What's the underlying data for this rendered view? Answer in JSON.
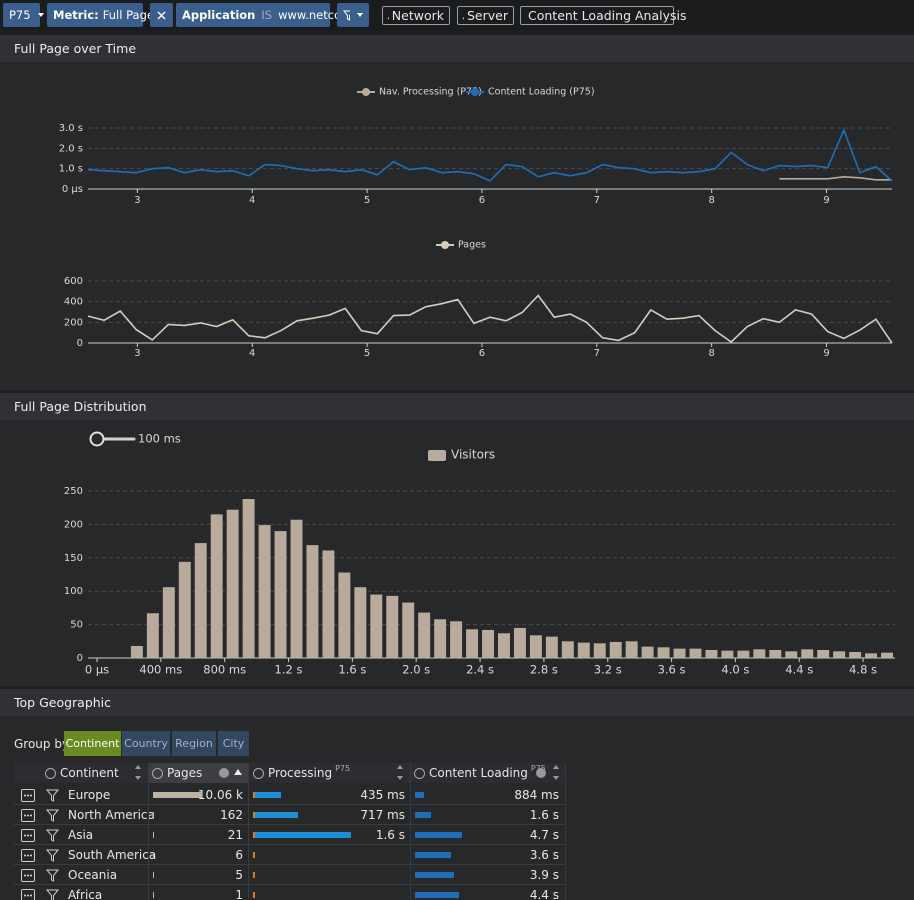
{
  "toolbar": {
    "percentile": "P75",
    "metric_key": "Metric:",
    "metric": "Full Page",
    "filter_key": "Application",
    "filter_op": "IS",
    "filter_value": "www.netcor.de",
    "links": [
      "Network",
      "Server",
      "Content Loading Analysis"
    ]
  },
  "panels": {
    "over_time": "Full Page over Time",
    "distribution": "Full Page Distribution",
    "geographic": "Top Geographic"
  },
  "slider_label": "100 ms",
  "chart_data": [
    {
      "type": "line",
      "x": [
        2.57,
        2.71,
        2.85,
        2.99,
        3.13,
        3.27,
        3.41,
        3.55,
        3.69,
        3.83,
        3.97,
        4.11,
        4.25,
        4.39,
        4.53,
        4.67,
        4.81,
        4.95,
        5.09,
        5.23,
        5.37,
        5.51,
        5.65,
        5.79,
        5.93,
        6.07,
        6.21,
        6.35,
        6.49,
        6.63,
        6.77,
        6.91,
        7.05,
        7.19,
        7.33,
        7.47,
        7.61,
        7.75,
        7.89,
        8.03,
        8.17,
        8.31,
        8.45,
        8.59,
        8.73,
        8.87,
        9.01,
        9.15,
        9.29,
        9.43,
        9.57
      ],
      "series": [
        {
          "name": "Nav. Processing (P75)",
          "color": "#b8ab9b",
          "values": [
            null,
            null,
            null,
            null,
            null,
            null,
            null,
            null,
            null,
            null,
            null,
            null,
            null,
            null,
            null,
            null,
            null,
            null,
            null,
            null,
            null,
            null,
            null,
            null,
            null,
            null,
            null,
            null,
            null,
            null,
            null,
            null,
            null,
            null,
            null,
            null,
            null,
            null,
            null,
            null,
            null,
            null,
            null,
            0.5,
            0.5,
            0.5,
            0.5,
            0.6,
            0.55,
            0.45,
            0.45
          ]
        },
        {
          "name": "Content Loading (P75)",
          "color": "#1f6fb8",
          "values": [
            0.95,
            0.9,
            0.85,
            0.8,
            1.0,
            1.05,
            0.8,
            0.95,
            0.85,
            0.9,
            0.65,
            1.2,
            1.15,
            1.0,
            0.9,
            0.95,
            0.85,
            0.95,
            0.7,
            1.35,
            0.95,
            1.05,
            0.8,
            0.85,
            0.75,
            0.4,
            1.2,
            1.1,
            0.6,
            0.8,
            0.65,
            0.8,
            1.2,
            1.05,
            1.0,
            0.8,
            0.85,
            0.8,
            0.85,
            1.0,
            1.8,
            1.2,
            0.9,
            1.15,
            1.1,
            1.15,
            1.05,
            2.9,
            0.8,
            1.1,
            0.4
          ]
        }
      ],
      "xlim": [
        2.57,
        9.57
      ],
      "xticks": [
        3,
        4,
        5,
        6,
        7,
        8,
        9
      ],
      "ylim": [
        0,
        3
      ],
      "yticks": [
        {
          "value": 0,
          "label": "0 µs"
        },
        {
          "value": 1,
          "label": "1.0 s"
        },
        {
          "value": 2,
          "label": "2.0 s"
        },
        {
          "value": 3,
          "label": "3.0 s"
        }
      ],
      "grid": true
    },
    {
      "type": "line",
      "x": [
        2.57,
        2.71,
        2.85,
        2.99,
        3.13,
        3.27,
        3.41,
        3.55,
        3.69,
        3.83,
        3.97,
        4.11,
        4.25,
        4.39,
        4.53,
        4.67,
        4.81,
        4.95,
        5.09,
        5.23,
        5.37,
        5.51,
        5.65,
        5.79,
        5.93,
        6.07,
        6.21,
        6.35,
        6.49,
        6.63,
        6.77,
        6.91,
        7.05,
        7.19,
        7.33,
        7.47,
        7.61,
        7.75,
        7.89,
        8.03,
        8.17,
        8.31,
        8.45,
        8.59,
        8.73,
        8.87,
        9.01,
        9.15,
        9.29,
        9.43,
        9.57
      ],
      "series": [
        {
          "name": "Pages",
          "color": "#d6cdbf",
          "values": [
            260,
            220,
            310,
            130,
            30,
            180,
            170,
            195,
            160,
            225,
            70,
            50,
            120,
            215,
            240,
            270,
            335,
            120,
            90,
            265,
            270,
            350,
            380,
            420,
            190,
            250,
            215,
            295,
            460,
            250,
            280,
            200,
            50,
            25,
            100,
            320,
            230,
            240,
            265,
            120,
            10,
            160,
            235,
            200,
            320,
            280,
            110,
            45,
            125,
            230,
            0
          ]
        }
      ],
      "xlim": [
        2.57,
        9.57
      ],
      "xticks": [
        3,
        4,
        5,
        6,
        7,
        8,
        9
      ],
      "ylim": [
        0,
        600
      ],
      "yticks": [
        0,
        200,
        400,
        600
      ],
      "grid": true
    },
    {
      "type": "histogram",
      "bins": [
        0,
        100,
        200,
        300,
        400,
        500,
        600,
        700,
        800,
        900,
        1000,
        1100,
        1200,
        1300,
        1400,
        1500,
        1600,
        1700,
        1800,
        1900,
        2000,
        2100,
        2200,
        2300,
        2400,
        2500,
        2600,
        2700,
        2800,
        2900,
        3000,
        3100,
        3200,
        3300,
        3400,
        3500,
        3600,
        3700,
        3800,
        3900,
        4000,
        4100,
        4200,
        4300,
        4400,
        4500,
        4600,
        4700,
        4800,
        4900,
        5000
      ],
      "series": [
        {
          "name": "Visitors",
          "color": "#b8ab9b",
          "values": [
            0,
            0,
            18,
            67,
            106,
            144,
            172,
            215,
            222,
            238,
            199,
            190,
            207,
            169,
            161,
            128,
            106,
            95,
            93,
            83,
            68,
            58,
            55,
            43,
            42,
            37,
            45,
            34,
            32,
            25,
            23,
            22,
            24,
            25,
            17,
            16,
            14,
            14,
            12,
            11,
            11,
            13,
            12,
            10,
            13,
            12,
            10,
            9,
            7,
            8
          ]
        }
      ],
      "xlim": [
        0,
        5000
      ],
      "xticks": [
        {
          "value": 0,
          "label": "0 µs"
        },
        {
          "value": 400,
          "label": "400 ms"
        },
        {
          "value": 800,
          "label": "800 ms"
        },
        {
          "value": 1200,
          "label": "1.2 s"
        },
        {
          "value": 1600,
          "label": "1.6 s"
        },
        {
          "value": 2000,
          "label": "2.0 s"
        },
        {
          "value": 2400,
          "label": "2.4 s"
        },
        {
          "value": 2800,
          "label": "2.8 s"
        },
        {
          "value": 3200,
          "label": "3.2 s"
        },
        {
          "value": 3600,
          "label": "3.6 s"
        },
        {
          "value": 4000,
          "label": "4.0 s"
        },
        {
          "value": 4400,
          "label": "4.4 s"
        },
        {
          "value": 4800,
          "label": "4.8 s"
        }
      ],
      "ylim": [
        0,
        250
      ],
      "yticks": [
        0,
        50,
        100,
        150,
        200,
        250
      ],
      "grid": true
    }
  ],
  "table": {
    "group_by_label": "Group by",
    "group_by": [
      "Continent",
      "Country",
      "Region",
      "City"
    ],
    "active_group": 0,
    "columns": [
      {
        "name": "Continent"
      },
      {
        "name": "Pages"
      },
      {
        "name": "Processing",
        "sup": "P75"
      },
      {
        "name": "Content Loading",
        "sup": "P75"
      }
    ],
    "rows": [
      {
        "name": "Europe",
        "pages": 10060,
        "pages_label": "10.06 k",
        "processing": 0.435,
        "processing_label": "435 ms",
        "content_loading": 0.884,
        "content_loading_label": "884 ms"
      },
      {
        "name": "North America",
        "pages": 162,
        "processing": 0.717,
        "processing_label": "717 ms",
        "content_loading": 1.6,
        "content_loading_label": "1.6 s"
      },
      {
        "name": "Asia",
        "pages": 21,
        "processing": 1.6,
        "processing_label": "1.6 s",
        "content_loading": 4.7,
        "content_loading_label": "4.7 s"
      },
      {
        "name": "South America",
        "pages": 6,
        "content_loading": 3.6,
        "content_loading_label": "3.6 s"
      },
      {
        "name": "Oceania",
        "pages": 5,
        "content_loading": 3.9,
        "content_loading_label": "3.9 s"
      },
      {
        "name": "Africa",
        "pages": 1,
        "content_loading": 4.4,
        "content_loading_label": "4.4 s"
      }
    ]
  }
}
